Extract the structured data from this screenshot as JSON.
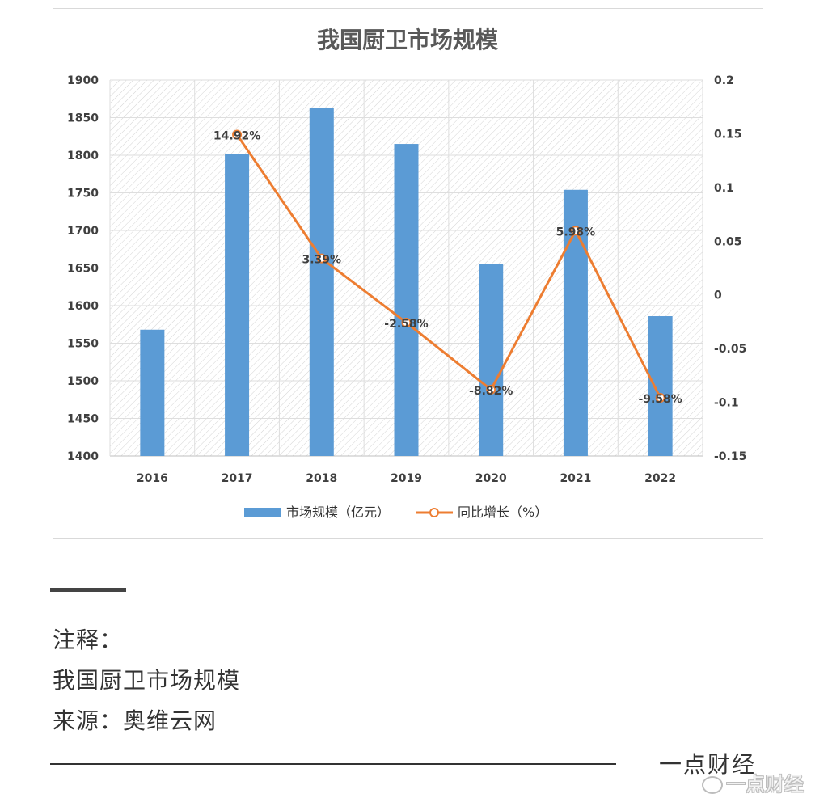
{
  "chart_data": {
    "type": "bar+line",
    "title": "我国厨卫市场规模",
    "categories": [
      "2016",
      "2017",
      "2018",
      "2019",
      "2020",
      "2021",
      "2022"
    ],
    "series": [
      {
        "name": "市场规模（亿元）",
        "type": "bar",
        "axis": "left",
        "color": "#5b9bd5",
        "values": [
          1568,
          1802,
          1863,
          1815,
          1655,
          1754,
          1586
        ]
      },
      {
        "name": "同比增长（%）",
        "type": "line",
        "axis": "right",
        "color": "#ed7d31",
        "values": [
          null,
          0.1492,
          0.0339,
          -0.0258,
          -0.0882,
          0.0598,
          -0.0958
        ],
        "labels": [
          "",
          "14.92%",
          "3.39%",
          "-2.58%",
          "-8.82%",
          "5.98%",
          "-9.58%"
        ]
      }
    ],
    "y_left": {
      "min": 1400,
      "max": 1900,
      "ticks": [
        "1400",
        "1450",
        "1500",
        "1550",
        "1600",
        "1650",
        "1700",
        "1750",
        "1800",
        "1850",
        "1900"
      ]
    },
    "y_right": {
      "min": -0.15,
      "max": 0.2,
      "ticks": [
        "-0.15",
        "-0.1",
        "-0.05",
        "0",
        "0.05",
        "0.1",
        "0.15",
        "0.2"
      ]
    },
    "grid": true,
    "legend_position": "bottom"
  },
  "notes": {
    "heading": "注释：",
    "line1": "我国厨卫市场规模",
    "line2": "来源：奥维云网"
  },
  "brand": "一点财经",
  "watermark": "一点财经"
}
